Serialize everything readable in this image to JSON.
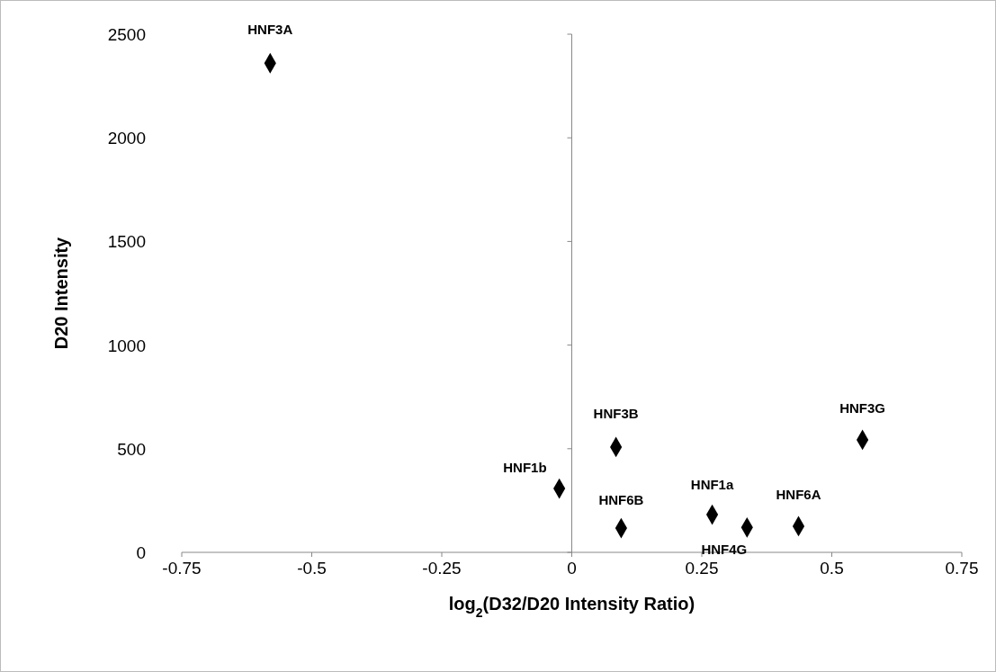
{
  "chart_data": {
    "type": "scatter",
    "xlabel": "log$_{2}$(D32/D20 Intensity Ratio)",
    "ylabel": "D20 Intensity",
    "x": [
      -0.58,
      0.085,
      -0.024,
      0.095,
      0.27,
      0.337,
      0.436,
      0.559
    ],
    "series": [
      {
        "color": "#000000",
        "values": [
          2360,
          508,
          308,
          117,
          182,
          120,
          126,
          543
        ]
      }
    ],
    "marker": "diamond",
    "xlim": [
      -0.75,
      0.75
    ],
    "xticks": [
      -0.75,
      -0.5,
      -0.25,
      0,
      0.25,
      0.5,
      0.75
    ],
    "ylim": [
      0,
      2500
    ],
    "yticks": [
      0,
      500,
      1000,
      1500,
      2000,
      2500
    ],
    "annotations": [
      {
        "text": "HNF3A",
        "x": -0.58,
        "y": 2360
      },
      {
        "text": "HNF3B",
        "x": 0.085,
        "y": 508
      },
      {
        "text": "HNF1b",
        "x": -0.024,
        "y": 308
      },
      {
        "text": "HNF6B",
        "x": 0.095,
        "y": 117
      },
      {
        "text": "HNF1a",
        "x": 0.27,
        "y": 182
      },
      {
        "text": "HNF4G",
        "x": 0.337,
        "y": 120
      },
      {
        "text": "HNF6A",
        "x": 0.436,
        "y": 126
      },
      {
        "text": "HNF3G",
        "x": 0.559,
        "y": 543
      }
    ]
  }
}
